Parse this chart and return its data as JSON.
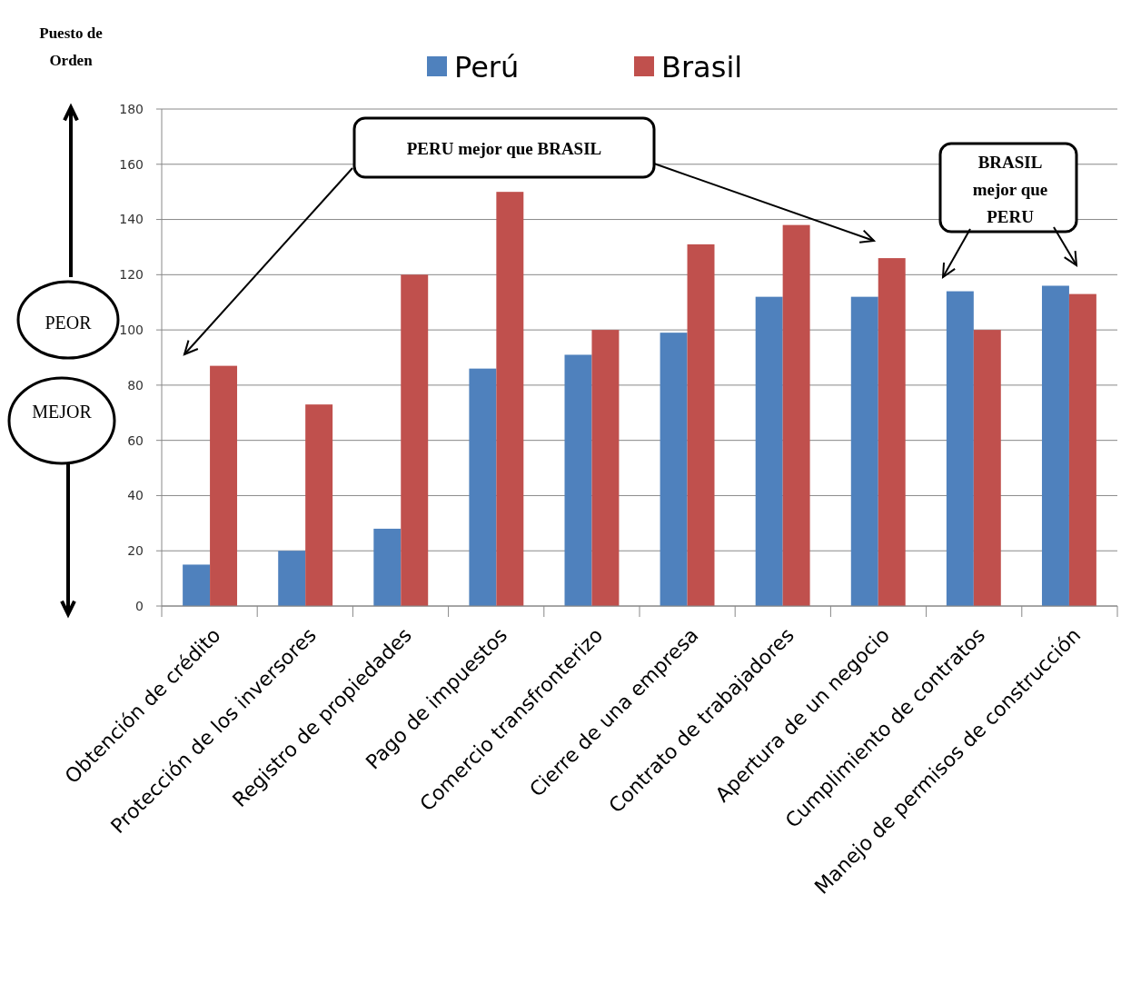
{
  "chart_data": {
    "type": "bar",
    "ylabel": "Puesto de Orden",
    "categories": [
      "Obtención de crédito",
      "Protección de los inversores",
      "Registro de propiedades",
      "Pago de impuestos",
      "Comercio transfronterizo",
      "Cierre de una empresa",
      "Contrato de trabajadores",
      "Apertura de un negocio",
      "Cumplimiento de contratos",
      "Manejo de permisos de construcción"
    ],
    "series": [
      {
        "name": "Perú",
        "color": "#4f81bd",
        "values": [
          15,
          20,
          28,
          86,
          91,
          99,
          112,
          112,
          114,
          116
        ]
      },
      {
        "name": "Brasil",
        "color": "#c0504d",
        "values": [
          87,
          73,
          120,
          150,
          100,
          131,
          138,
          126,
          100,
          113
        ]
      }
    ],
    "ylim": [
      0,
      180
    ],
    "yticks": [
      0,
      20,
      40,
      60,
      80,
      100,
      120,
      140,
      160,
      180
    ],
    "grid": "y",
    "legend": "top",
    "annotations": [
      "PERU mejor que BRASIL",
      "BRASIL mejor que PERU",
      "PEOR",
      "MEJOR"
    ]
  }
}
